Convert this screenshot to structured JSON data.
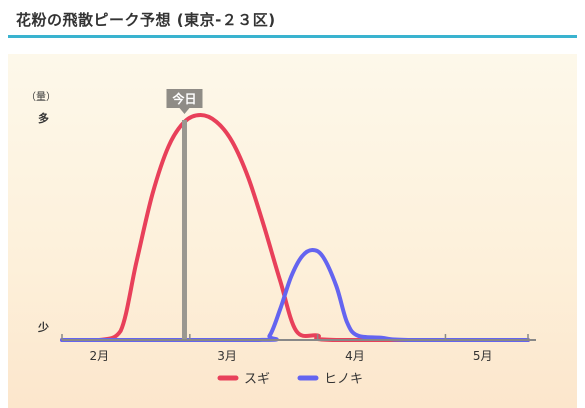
{
  "header": {
    "title": "花粉の飛散ピーク予想 (東京-２３区)"
  },
  "chart_data": {
    "type": "line",
    "unit_label": "（量）",
    "y_levels": {
      "high": "多",
      "low": "少"
    },
    "ylim": [
      0,
      100
    ],
    "xlim": [
      0,
      17.5
    ],
    "x_ticks": [
      0,
      4.8,
      9.6,
      14.4,
      17.5
    ],
    "x_labels": [
      {
        "label": "2月",
        "x": 1.4
      },
      {
        "label": "3月",
        "x": 6.2
      },
      {
        "label": "4月",
        "x": 11.0
      },
      {
        "label": "5月",
        "x": 15.8
      }
    ],
    "today": {
      "label": "今日",
      "x": 4.6
    },
    "series": [
      {
        "name": "スギ",
        "color": "#e8405a",
        "points": [
          [
            0,
            0
          ],
          [
            1.4,
            0
          ],
          [
            2.2,
            4
          ],
          [
            2.8,
            35
          ],
          [
            3.4,
            65
          ],
          [
            4.0,
            86
          ],
          [
            4.6,
            97
          ],
          [
            5.2,
            100
          ],
          [
            5.8,
            97
          ],
          [
            6.4,
            88
          ],
          [
            7.0,
            72
          ],
          [
            7.6,
            50
          ],
          [
            8.2,
            26
          ],
          [
            8.8,
            4
          ],
          [
            9.6,
            2
          ],
          [
            10.3,
            0
          ],
          [
            17.5,
            0
          ]
        ]
      },
      {
        "name": "ヒノキ",
        "color": "#6464f0",
        "points": [
          [
            0,
            0
          ],
          [
            7.4,
            0
          ],
          [
            7.8,
            2
          ],
          [
            8.2,
            14
          ],
          [
            8.6,
            28
          ],
          [
            9.0,
            37
          ],
          [
            9.4,
            40
          ],
          [
            9.8,
            37
          ],
          [
            10.3,
            24
          ],
          [
            10.7,
            8
          ],
          [
            11.1,
            2
          ],
          [
            12.0,
            1
          ],
          [
            13.0,
            0
          ],
          [
            17.5,
            0
          ]
        ]
      }
    ]
  }
}
